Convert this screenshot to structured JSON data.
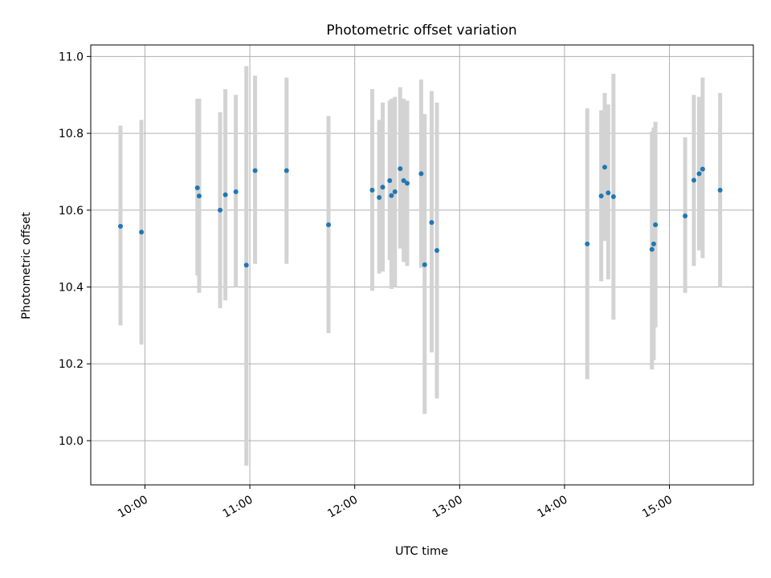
{
  "chart_data": {
    "type": "scatter",
    "title": "Photometric offset variation",
    "xlabel": "UTC time",
    "ylabel": "Photometric offset",
    "xlim": [
      "09:29",
      "15:48"
    ],
    "ylim": [
      9.885,
      11.03
    ],
    "grid": true,
    "x_ticks": [
      "10:00",
      "11:00",
      "12:00",
      "13:00",
      "14:00",
      "15:00"
    ],
    "y_ticks": [
      "10.0",
      "10.2",
      "10.4",
      "10.6",
      "10.8",
      "11.0"
    ],
    "colors": {
      "point": "#1f77b4",
      "errorbar": "#d3d3d3",
      "grid": "#b0b0b0"
    },
    "points": [
      {
        "x": "09:46",
        "y": 10.558,
        "lo": 10.3,
        "hi": 10.82
      },
      {
        "x": "09:58",
        "y": 10.543,
        "lo": 10.25,
        "hi": 10.835
      },
      {
        "x": "10:30",
        "y": 10.658,
        "lo": 10.43,
        "hi": 10.89
      },
      {
        "x": "10:31",
        "y": 10.637,
        "lo": 10.385,
        "hi": 10.89
      },
      {
        "x": "10:43",
        "y": 10.6,
        "lo": 10.345,
        "hi": 10.855
      },
      {
        "x": "10:46",
        "y": 10.64,
        "lo": 10.365,
        "hi": 10.915
      },
      {
        "x": "10:52",
        "y": 10.648,
        "lo": 10.4,
        "hi": 10.9
      },
      {
        "x": "10:58",
        "y": 10.457,
        "lo": 9.935,
        "hi": 10.975
      },
      {
        "x": "11:03",
        "y": 10.703,
        "lo": 10.46,
        "hi": 10.95
      },
      {
        "x": "11:21",
        "y": 10.703,
        "lo": 10.46,
        "hi": 10.945
      },
      {
        "x": "11:45",
        "y": 10.562,
        "lo": 10.28,
        "hi": 10.845
      },
      {
        "x": "12:10",
        "y": 10.652,
        "lo": 10.39,
        "hi": 10.915
      },
      {
        "x": "12:14",
        "y": 10.633,
        "lo": 10.435,
        "hi": 10.835
      },
      {
        "x": "12:16",
        "y": 10.66,
        "lo": 10.44,
        "hi": 10.88
      },
      {
        "x": "12:20",
        "y": 10.677,
        "lo": 10.47,
        "hi": 10.885
      },
      {
        "x": "12:21",
        "y": 10.638,
        "lo": 10.395,
        "hi": 10.89
      },
      {
        "x": "12:23",
        "y": 10.648,
        "lo": 10.4,
        "hi": 10.895
      },
      {
        "x": "12:26",
        "y": 10.708,
        "lo": 10.5,
        "hi": 10.92
      },
      {
        "x": "12:28",
        "y": 10.677,
        "lo": 10.465,
        "hi": 10.89
      },
      {
        "x": "12:30",
        "y": 10.67,
        "lo": 10.455,
        "hi": 10.885
      },
      {
        "x": "12:38",
        "y": 10.695,
        "lo": 10.45,
        "hi": 10.94
      },
      {
        "x": "12:40",
        "y": 10.458,
        "lo": 10.07,
        "hi": 10.85
      },
      {
        "x": "12:44",
        "y": 10.568,
        "lo": 10.23,
        "hi": 10.91
      },
      {
        "x": "12:47",
        "y": 10.495,
        "lo": 10.11,
        "hi": 10.88
      },
      {
        "x": "14:13",
        "y": 10.512,
        "lo": 10.16,
        "hi": 10.865
      },
      {
        "x": "14:21",
        "y": 10.637,
        "lo": 10.415,
        "hi": 10.86
      },
      {
        "x": "14:23",
        "y": 10.712,
        "lo": 10.52,
        "hi": 10.905
      },
      {
        "x": "14:25",
        "y": 10.645,
        "lo": 10.42,
        "hi": 10.875
      },
      {
        "x": "14:28",
        "y": 10.635,
        "lo": 10.315,
        "hi": 10.955
      },
      {
        "x": "14:50",
        "y": 10.498,
        "lo": 10.185,
        "hi": 10.805
      },
      {
        "x": "14:51",
        "y": 10.512,
        "lo": 10.21,
        "hi": 10.815
      },
      {
        "x": "14:52",
        "y": 10.562,
        "lo": 10.295,
        "hi": 10.83
      },
      {
        "x": "15:09",
        "y": 10.585,
        "lo": 10.385,
        "hi": 10.79
      },
      {
        "x": "15:14",
        "y": 10.678,
        "lo": 10.455,
        "hi": 10.9
      },
      {
        "x": "15:17",
        "y": 10.695,
        "lo": 10.495,
        "hi": 10.895
      },
      {
        "x": "15:19",
        "y": 10.707,
        "lo": 10.475,
        "hi": 10.945
      },
      {
        "x": "15:29",
        "y": 10.652,
        "lo": 10.4,
        "hi": 10.905
      }
    ]
  }
}
